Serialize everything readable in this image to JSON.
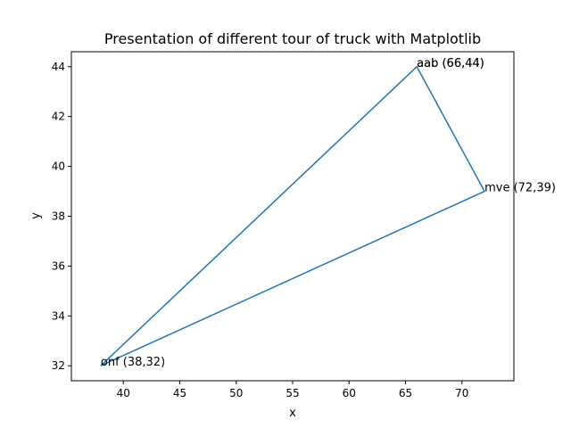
{
  "chart_data": {
    "type": "line",
    "title": "Presentation of different tour of truck with Matplotlib",
    "xlabel": "x",
    "ylabel": "y",
    "xlim": [
      35.4,
      74.6
    ],
    "ylim": [
      31.4,
      44.6
    ],
    "xticks": [
      40,
      45,
      50,
      55,
      60,
      65,
      70
    ],
    "yticks": [
      32,
      34,
      36,
      38,
      40,
      42,
      44
    ],
    "grid": false,
    "series": [
      {
        "color": "#1f77b4",
        "x": [
          38,
          66,
          72,
          38
        ],
        "y": [
          32,
          44,
          39,
          32
        ]
      }
    ],
    "annotations": [
      {
        "text": "aab (66,44)",
        "x": 66,
        "y": 44
      },
      {
        "text": "aab (66,44)",
        "x": 66,
        "y": 44
      },
      {
        "text": "mve (72,39)",
        "x": 72,
        "y": 39
      },
      {
        "text": "onf (38,32)",
        "x": 38,
        "y": 32
      }
    ]
  }
}
